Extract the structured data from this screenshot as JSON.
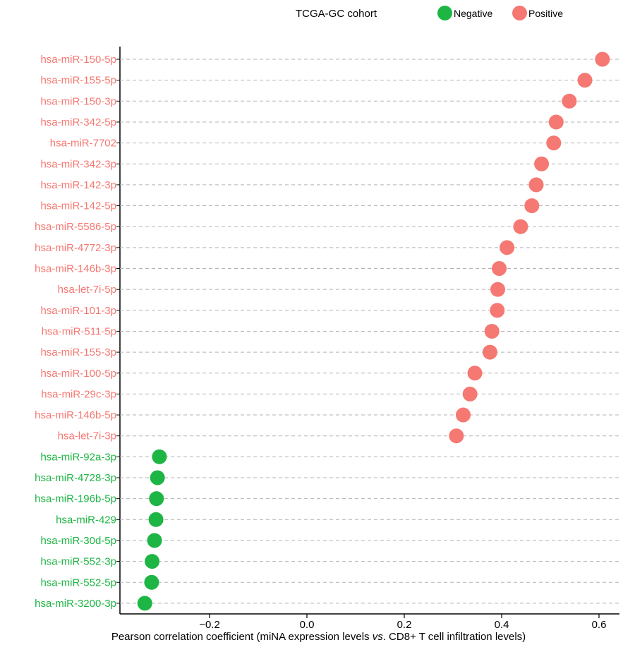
{
  "legend": {
    "title": "TCGA-GC cohort",
    "items": [
      {
        "label": "Negative",
        "color": "#1db544"
      },
      {
        "label": "Positive",
        "color": "#f57872"
      }
    ]
  },
  "xlabel": {
    "prefix": "Pearson correlation coefficient (miNA expression levels ",
    "italic": "vs",
    "suffix": ". CD8+ T cell infiltration levels)"
  },
  "chart_data": {
    "type": "scatter",
    "orientation": "horizontal dot plot",
    "title": "",
    "xlabel": "Pearson correlation coefficient (miNA expression levels vs. CD8+ T cell infiltration levels)",
    "ylabel": "",
    "xlim": [
      -0.38,
      0.63
    ],
    "xticks": [
      -0.2,
      0.0,
      0.2,
      0.4,
      0.6
    ],
    "xtick_labels": [
      "−0.2",
      "0.0",
      "0.2",
      "0.4",
      "0.6"
    ],
    "grid": "horizontal dashed",
    "legend_position": "top",
    "colors": {
      "Negative": "#1db544",
      "Positive": "#f57872"
    },
    "points": [
      {
        "label": "hsa-miR-150-5p",
        "value": 0.607,
        "group": "Positive"
      },
      {
        "label": "hsa-miR-155-5p",
        "value": 0.571,
        "group": "Positive"
      },
      {
        "label": "hsa-miR-150-3p",
        "value": 0.539,
        "group": "Positive"
      },
      {
        "label": "hsa-miR-342-5p",
        "value": 0.512,
        "group": "Positive"
      },
      {
        "label": "hsa-miR-7702",
        "value": 0.507,
        "group": "Positive"
      },
      {
        "label": "hsa-miR-342-3p",
        "value": 0.482,
        "group": "Positive"
      },
      {
        "label": "hsa-miR-142-3p",
        "value": 0.471,
        "group": "Positive"
      },
      {
        "label": "hsa-miR-142-5p",
        "value": 0.462,
        "group": "Positive"
      },
      {
        "label": "hsa-miR-5586-5p",
        "value": 0.439,
        "group": "Positive"
      },
      {
        "label": "hsa-miR-4772-3p",
        "value": 0.411,
        "group": "Positive"
      },
      {
        "label": "hsa-miR-146b-3p",
        "value": 0.395,
        "group": "Positive"
      },
      {
        "label": "hsa-let-7i-5p",
        "value": 0.392,
        "group": "Positive"
      },
      {
        "label": "hsa-miR-101-3p",
        "value": 0.391,
        "group": "Positive"
      },
      {
        "label": "hsa-miR-511-5p",
        "value": 0.38,
        "group": "Positive"
      },
      {
        "label": "hsa-miR-155-3p",
        "value": 0.376,
        "group": "Positive"
      },
      {
        "label": "hsa-miR-100-5p",
        "value": 0.345,
        "group": "Positive"
      },
      {
        "label": "hsa-miR-29c-3p",
        "value": 0.335,
        "group": "Positive"
      },
      {
        "label": "hsa-miR-146b-5p",
        "value": 0.321,
        "group": "Positive"
      },
      {
        "label": "hsa-let-7i-3p",
        "value": 0.307,
        "group": "Positive"
      },
      {
        "label": "hsa-miR-92a-3p",
        "value": -0.303,
        "group": "Negative"
      },
      {
        "label": "hsa-miR-4728-3p",
        "value": -0.307,
        "group": "Negative"
      },
      {
        "label": "hsa-miR-196b-5p",
        "value": -0.309,
        "group": "Negative"
      },
      {
        "label": "hsa-miR-429",
        "value": -0.31,
        "group": "Negative"
      },
      {
        "label": "hsa-miR-30d-5p",
        "value": -0.313,
        "group": "Negative"
      },
      {
        "label": "hsa-miR-552-3p",
        "value": -0.318,
        "group": "Negative"
      },
      {
        "label": "hsa-miR-552-5p",
        "value": -0.319,
        "group": "Negative"
      },
      {
        "label": "hsa-miR-3200-3p",
        "value": -0.333,
        "group": "Negative"
      }
    ]
  }
}
